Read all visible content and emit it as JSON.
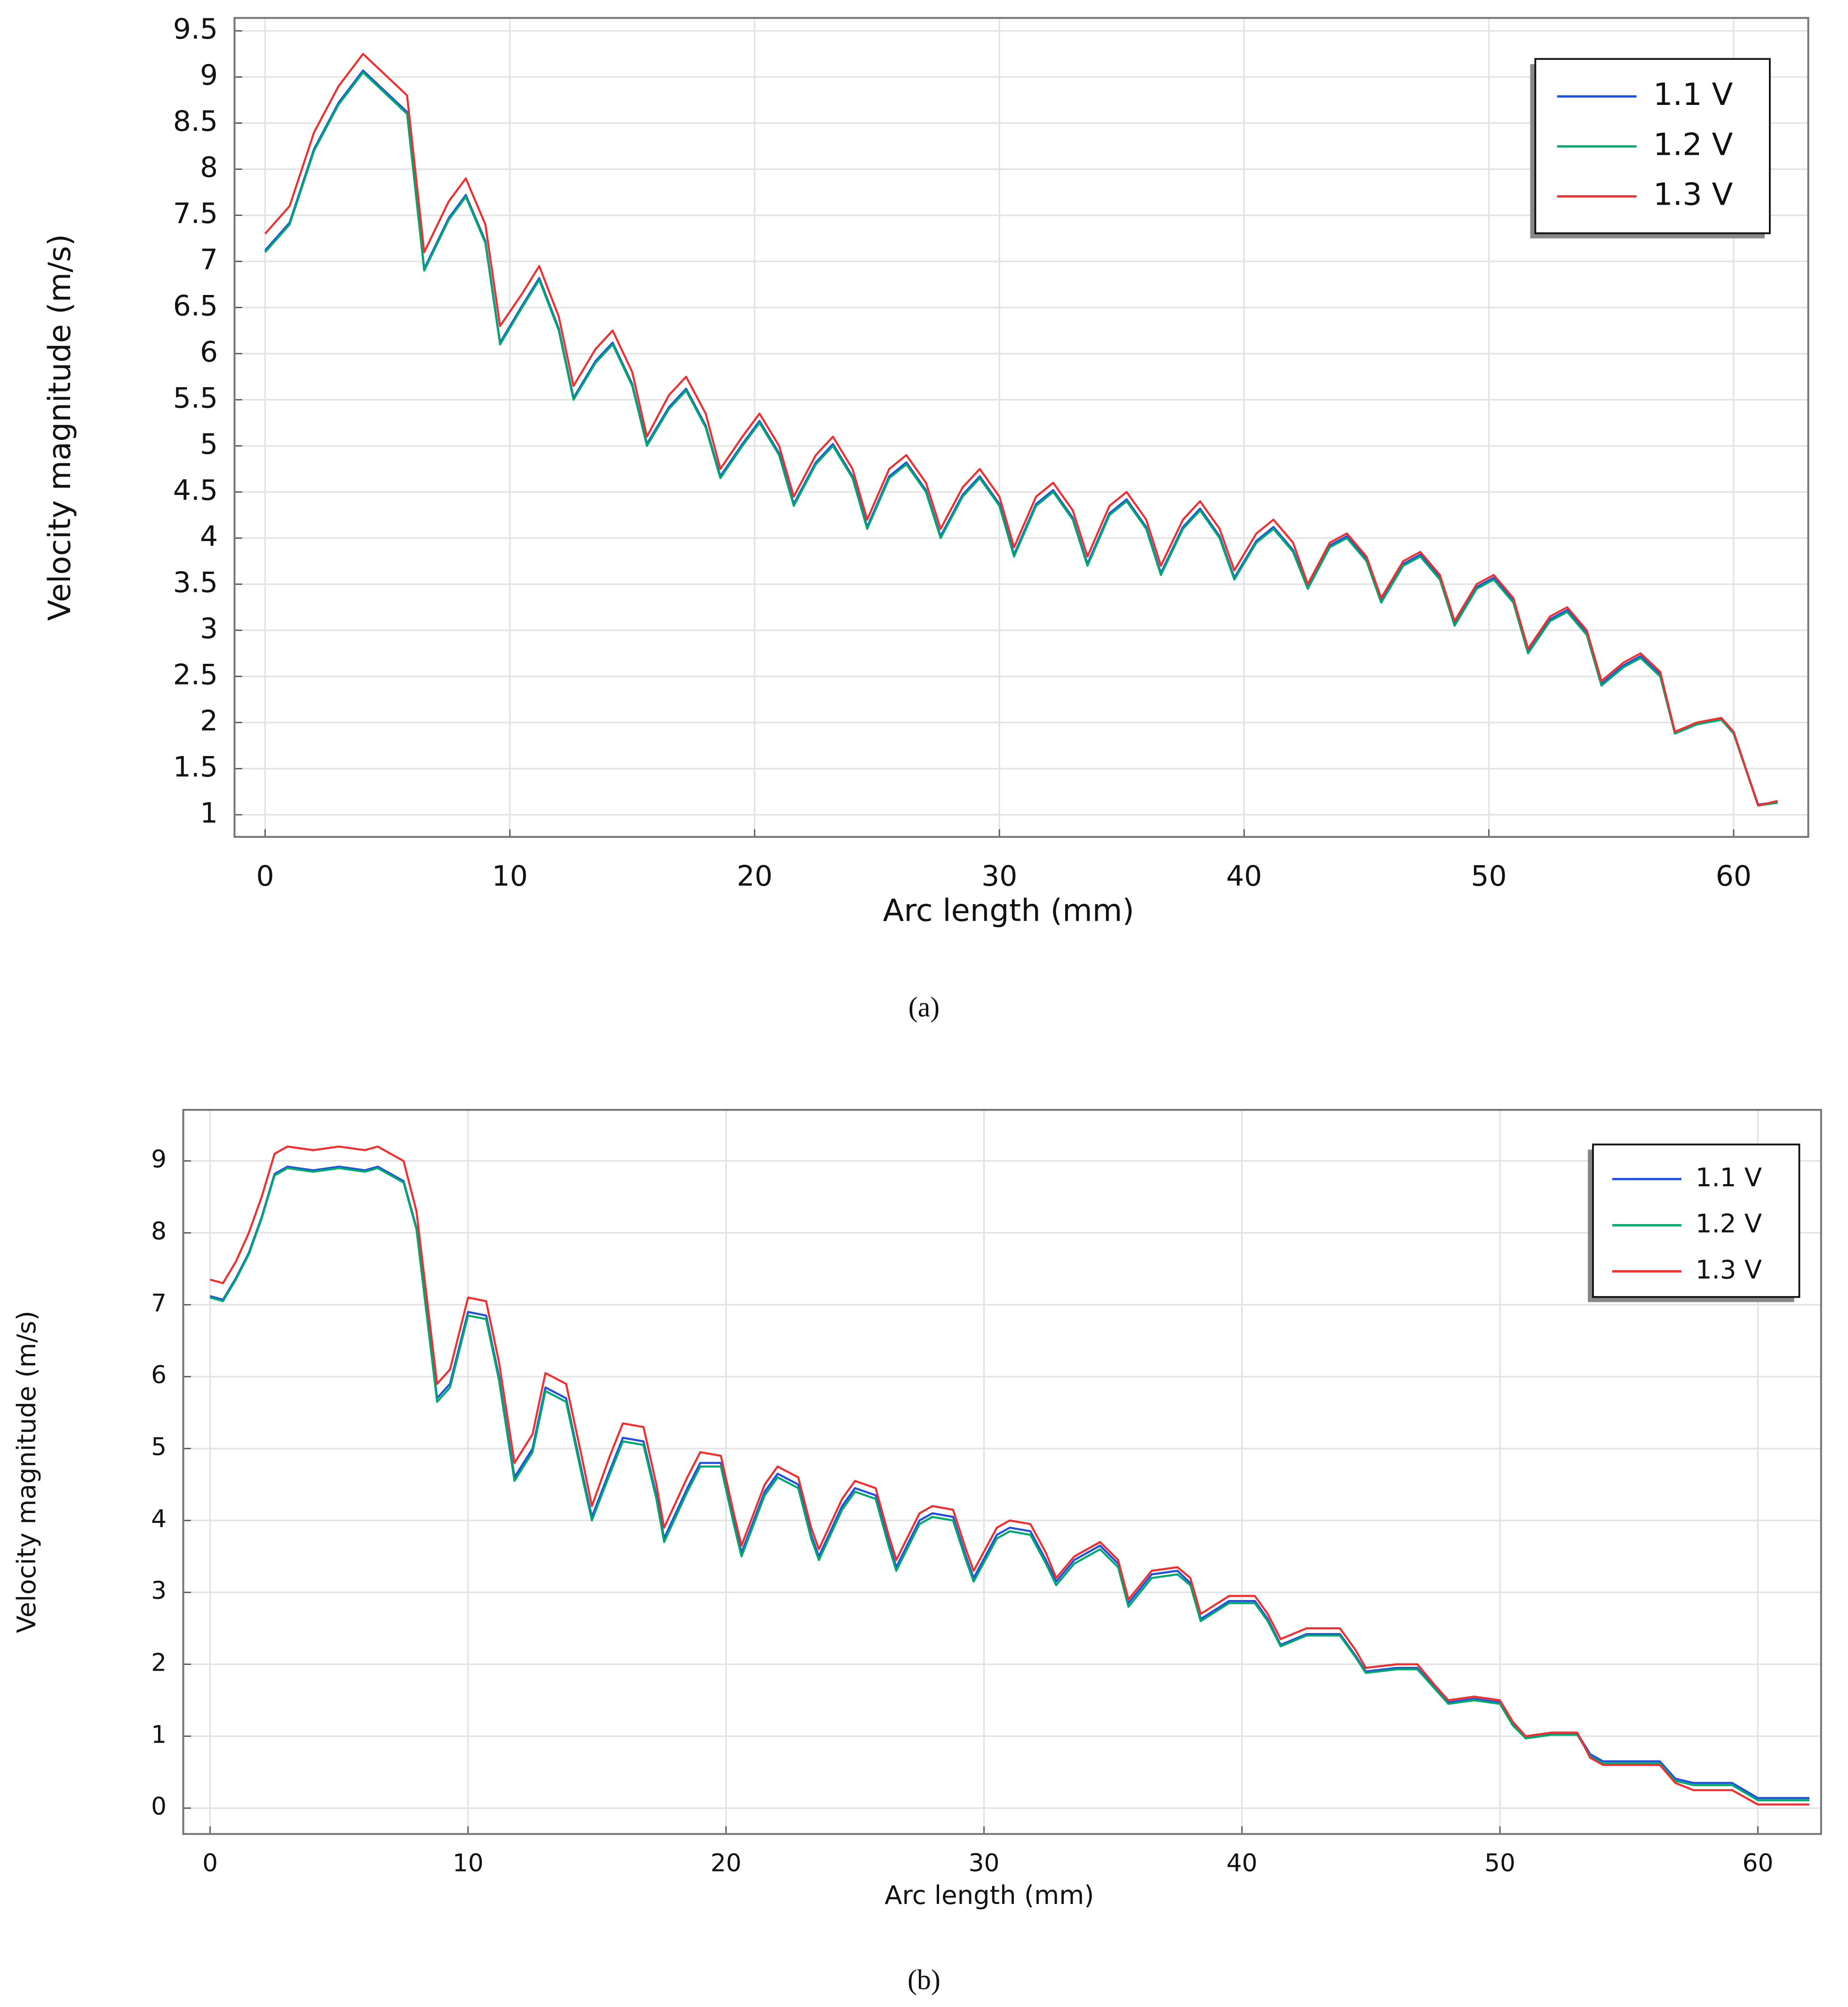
{
  "chart_data": [
    {
      "type": "line",
      "caption": "(a)",
      "xlabel": "Arc length (mm)",
      "ylabel": "Velocity magnitude (m/s)",
      "xlim": [
        -1.25,
        63.05
      ],
      "ylim": [
        0.76,
        9.64
      ],
      "xticks": [
        0,
        10,
        20,
        30,
        40,
        50,
        60
      ],
      "yticks": [
        1,
        1.5,
        2,
        2.5,
        3,
        3.5,
        4,
        4.5,
        5,
        5.5,
        6,
        6.5,
        7,
        7.5,
        8,
        8.5,
        9,
        9.5
      ],
      "grid": true,
      "legend": "upper right",
      "x": [
        0,
        1,
        2,
        3,
        4,
        5,
        5.8,
        6.5,
        7.5,
        8.2,
        9.0,
        9.6,
        10.5,
        11.2,
        12.0,
        12.6,
        13.5,
        14.2,
        15.0,
        15.6,
        16.5,
        17.2,
        18.0,
        18.6,
        19.5,
        20.2,
        21.0,
        21.6,
        22.5,
        23.2,
        24.0,
        24.6,
        25.5,
        26.2,
        27.0,
        27.6,
        28.5,
        29.2,
        30.0,
        30.6,
        31.5,
        32.2,
        33.0,
        33.6,
        34.5,
        35.2,
        36.0,
        36.6,
        37.5,
        38.2,
        39.0,
        39.6,
        40.5,
        41.2,
        42.0,
        42.6,
        43.5,
        44.2,
        45.0,
        45.6,
        46.5,
        47.2,
        48.0,
        48.6,
        49.5,
        50.2,
        51.0,
        51.6,
        52.5,
        53.2,
        54.0,
        54.6,
        55.5,
        56.2,
        57.0,
        57.6,
        58.5,
        59.5,
        60.0,
        61.0,
        61.8
      ],
      "series": [
        {
          "name": "1.1 V",
          "color": "#2050e0",
          "values": [
            7.12,
            7.42,
            8.22,
            8.72,
            9.07,
            8.82,
            8.62,
            6.92,
            7.47,
            7.72,
            7.22,
            6.12,
            6.52,
            6.82,
            6.27,
            5.52,
            5.92,
            6.12,
            5.67,
            5.02,
            5.42,
            5.62,
            5.22,
            4.67,
            5.02,
            5.27,
            4.92,
            4.37,
            4.82,
            5.02,
            4.67,
            4.12,
            4.67,
            4.82,
            4.52,
            4.02,
            4.47,
            4.67,
            4.37,
            3.82,
            4.37,
            4.52,
            4.22,
            3.72,
            4.27,
            4.42,
            4.12,
            3.62,
            4.12,
            4.32,
            4.02,
            3.57,
            3.97,
            4.12,
            3.87,
            3.47,
            3.92,
            4.02,
            3.77,
            3.32,
            3.72,
            3.82,
            3.57,
            3.07,
            3.47,
            3.57,
            3.32,
            2.77,
            3.12,
            3.22,
            2.97,
            2.42,
            2.62,
            2.72,
            2.52,
            1.89,
            1.99,
            2.04,
            1.89,
            1.11,
            1.14
          ]
        },
        {
          "name": "1.2 V",
          "color": "#00a870",
          "values": [
            7.1,
            7.4,
            8.2,
            8.7,
            9.05,
            8.8,
            8.6,
            6.9,
            7.45,
            7.7,
            7.2,
            6.1,
            6.5,
            6.8,
            6.25,
            5.5,
            5.9,
            6.1,
            5.65,
            5.0,
            5.4,
            5.6,
            5.2,
            4.65,
            5.0,
            5.25,
            4.9,
            4.35,
            4.8,
            5.0,
            4.65,
            4.1,
            4.65,
            4.8,
            4.5,
            4.0,
            4.45,
            4.65,
            4.35,
            3.8,
            4.35,
            4.5,
            4.2,
            3.7,
            4.25,
            4.4,
            4.1,
            3.6,
            4.1,
            4.3,
            4.0,
            3.55,
            3.95,
            4.1,
            3.85,
            3.45,
            3.9,
            4.0,
            3.75,
            3.3,
            3.7,
            3.8,
            3.55,
            3.05,
            3.45,
            3.55,
            3.3,
            2.75,
            3.1,
            3.2,
            2.95,
            2.4,
            2.6,
            2.7,
            2.5,
            1.88,
            1.98,
            2.03,
            1.88,
            1.1,
            1.13
          ]
        },
        {
          "name": "1.3 V",
          "color": "#f03030",
          "values": [
            7.3,
            7.6,
            8.4,
            8.9,
            9.25,
            9.0,
            8.8,
            7.1,
            7.65,
            7.9,
            7.4,
            6.3,
            6.65,
            6.95,
            6.4,
            5.65,
            6.05,
            6.25,
            5.8,
            5.1,
            5.55,
            5.75,
            5.35,
            4.75,
            5.1,
            5.35,
            5.0,
            4.45,
            4.9,
            5.1,
            4.75,
            4.2,
            4.75,
            4.9,
            4.6,
            4.1,
            4.55,
            4.75,
            4.45,
            3.9,
            4.45,
            4.6,
            4.3,
            3.8,
            4.35,
            4.5,
            4.2,
            3.7,
            4.2,
            4.4,
            4.1,
            3.65,
            4.05,
            4.2,
            3.95,
            3.5,
            3.95,
            4.05,
            3.8,
            3.35,
            3.75,
            3.85,
            3.6,
            3.1,
            3.5,
            3.6,
            3.35,
            2.8,
            3.15,
            3.25,
            3.0,
            2.45,
            2.65,
            2.75,
            2.55,
            1.9,
            2.0,
            2.05,
            1.9,
            1.1,
            1.15
          ]
        }
      ]
    },
    {
      "type": "line",
      "caption": "(b)",
      "xlabel": "Arc length (mm)",
      "ylabel": "Velocity magnitude (m/s)",
      "xlim": [
        -1.04,
        62.45
      ],
      "ylim": [
        -0.36,
        9.71
      ],
      "xticks": [
        0,
        10,
        20,
        30,
        40,
        50,
        60
      ],
      "yticks": [
        0,
        1,
        2,
        3,
        4,
        5,
        6,
        7,
        8,
        9
      ],
      "grid": true,
      "legend": "upper right",
      "x": [
        0,
        0.5,
        1,
        1.5,
        2,
        2.5,
        3,
        4,
        5,
        6,
        6.5,
        7.5,
        8,
        8.8,
        9.3,
        10,
        10.7,
        11.2,
        11.8,
        12.5,
        13,
        13.8,
        14.4,
        14.8,
        15.5,
        16,
        16.8,
        17.3,
        17.6,
        18.5,
        19,
        19.8,
        20.3,
        20.6,
        21.5,
        22,
        22.8,
        23.3,
        23.6,
        24.5,
        25,
        25.8,
        26.3,
        26.6,
        27.5,
        28,
        28.8,
        29.3,
        29.6,
        30.5,
        31,
        31.8,
        32.4,
        32.8,
        33.5,
        34.5,
        35.2,
        35.6,
        36.5,
        37.5,
        38,
        38.4,
        39.5,
        40.5,
        41,
        41.5,
        42.5,
        43.8,
        44.4,
        44.8,
        46,
        46.8,
        47.5,
        48,
        49,
        50,
        50.5,
        51,
        52,
        53,
        53.5,
        54,
        55,
        56.2,
        56.8,
        57.5,
        59,
        60,
        62
      ],
      "series": [
        {
          "name": "1.1 V",
          "color": "#2050e0",
          "values": [
            7.12,
            7.07,
            7.37,
            7.72,
            8.22,
            8.82,
            8.92,
            8.87,
            8.92,
            8.87,
            8.92,
            8.72,
            8.07,
            5.7,
            5.9,
            6.9,
            6.85,
            6.0,
            4.6,
            5.0,
            5.85,
            5.7,
            4.7,
            4.05,
            4.7,
            5.15,
            5.1,
            4.35,
            3.75,
            4.45,
            4.8,
            4.8,
            4.0,
            3.55,
            4.4,
            4.65,
            4.5,
            3.8,
            3.5,
            4.2,
            4.45,
            4.35,
            3.7,
            3.35,
            4.0,
            4.1,
            4.05,
            3.5,
            3.2,
            3.8,
            3.9,
            3.85,
            3.45,
            3.15,
            3.45,
            3.65,
            3.4,
            2.85,
            3.25,
            3.3,
            3.13,
            2.63,
            2.88,
            2.88,
            2.63,
            2.27,
            2.42,
            2.42,
            2.12,
            1.9,
            1.95,
            1.95,
            1.67,
            1.47,
            1.52,
            1.47,
            1.17,
            0.99,
            1.04,
            1.04,
            0.75,
            0.65,
            0.65,
            0.65,
            0.41,
            0.35,
            0.35,
            0.14,
            0.14
          ]
        },
        {
          "name": "1.2 V",
          "color": "#00a870",
          "values": [
            7.1,
            7.05,
            7.35,
            7.7,
            8.2,
            8.8,
            8.9,
            8.85,
            8.9,
            8.85,
            8.9,
            8.7,
            8.05,
            5.65,
            5.85,
            6.85,
            6.8,
            5.95,
            4.55,
            4.95,
            5.8,
            5.65,
            4.65,
            4.0,
            4.65,
            5.1,
            5.05,
            4.3,
            3.7,
            4.4,
            4.75,
            4.75,
            3.95,
            3.5,
            4.35,
            4.6,
            4.45,
            3.75,
            3.45,
            4.15,
            4.4,
            4.3,
            3.65,
            3.3,
            3.95,
            4.05,
            4.0,
            3.45,
            3.15,
            3.75,
            3.85,
            3.8,
            3.4,
            3.1,
            3.4,
            3.6,
            3.35,
            2.8,
            3.2,
            3.25,
            3.1,
            2.6,
            2.85,
            2.85,
            2.6,
            2.25,
            2.4,
            2.4,
            2.1,
            1.88,
            1.93,
            1.93,
            1.65,
            1.45,
            1.5,
            1.45,
            1.15,
            0.97,
            1.02,
            1.02,
            0.72,
            0.62,
            0.62,
            0.62,
            0.38,
            0.32,
            0.32,
            0.11,
            0.11
          ]
        },
        {
          "name": "1.3 V",
          "color": "#f03030",
          "values": [
            7.35,
            7.3,
            7.6,
            8.0,
            8.5,
            9.1,
            9.2,
            9.15,
            9.2,
            9.15,
            9.2,
            9.0,
            8.3,
            5.9,
            6.1,
            7.1,
            7.05,
            6.2,
            4.8,
            5.2,
            6.05,
            5.9,
            4.9,
            4.2,
            4.9,
            5.35,
            5.3,
            4.5,
            3.9,
            4.6,
            4.95,
            4.9,
            4.1,
            3.65,
            4.5,
            4.75,
            4.6,
            3.9,
            3.6,
            4.3,
            4.55,
            4.45,
            3.8,
            3.45,
            4.1,
            4.2,
            4.15,
            3.6,
            3.3,
            3.9,
            4.0,
            3.95,
            3.55,
            3.2,
            3.5,
            3.7,
            3.45,
            2.9,
            3.3,
            3.35,
            3.2,
            2.7,
            2.95,
            2.95,
            2.7,
            2.35,
            2.5,
            2.5,
            2.2,
            1.95,
            2.0,
            2.0,
            1.7,
            1.5,
            1.55,
            1.5,
            1.2,
            1.0,
            1.05,
            1.05,
            0.7,
            0.6,
            0.6,
            0.6,
            0.35,
            0.25,
            0.25,
            0.05,
            0.05
          ]
        }
      ]
    }
  ]
}
